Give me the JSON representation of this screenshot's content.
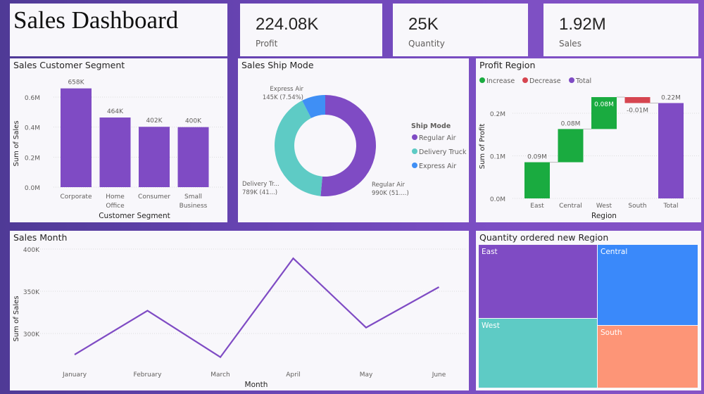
{
  "title": "Sales Dashboard",
  "kpis": [
    {
      "value": "224.08K",
      "label": "Profit"
    },
    {
      "value": "25K",
      "label": "Quantity"
    },
    {
      "value": "1.92M",
      "label": "Sales"
    }
  ],
  "colors": {
    "purple": "#7f4bc4",
    "teal": "#5ecbc5",
    "blue": "#3f8ff5",
    "green": "#1aab40",
    "red": "#d64550",
    "salmon": "#fd9577",
    "accent_blue": "#3a89fa"
  },
  "chart_data": [
    {
      "type": "bar",
      "title": "Sales Customer Segment",
      "xlabel": "Customer Segment",
      "ylabel": "Sum of Sales",
      "categories": [
        "Corporate",
        "Home Office",
        "Consumer",
        "Small Business"
      ],
      "values": [
        658000,
        464000,
        402000,
        400000
      ],
      "data_labels": [
        "658K",
        "464K",
        "402K",
        "400K"
      ],
      "yticks": [
        "0.0M",
        "0.2M",
        "0.4M",
        "0.6M"
      ],
      "ylim": [
        0,
        0.7
      ],
      "grid": true
    },
    {
      "type": "pie",
      "subtype": "donut",
      "title": "Sales Ship Mode",
      "legend_title": "Ship Mode",
      "legend_position": "right",
      "categories": [
        "Regular Air",
        "Delivery Truck",
        "Express Air"
      ],
      "values": [
        990000,
        789000,
        145000
      ],
      "data_labels": [
        [
          "Regular Air",
          "990K (51....)"
        ],
        [
          "Delivery Tr...",
          "789K (41...)"
        ],
        [
          "Express Air",
          "145K (7.54%)"
        ]
      ]
    },
    {
      "type": "bar",
      "subtype": "waterfall",
      "title": "Profit Region",
      "xlabel": "Region",
      "ylabel": "Sum of Profit",
      "legend": [
        "Increase",
        "Decrease",
        "Total"
      ],
      "legend_position": "top-left",
      "categories": [
        "East",
        "Central",
        "West",
        "South",
        "Total"
      ],
      "values": [
        0.085,
        0.078,
        0.075,
        -0.014,
        0.224
      ],
      "data_labels": [
        "0.09M",
        "0.08M",
        "0.08M",
        "-0.01M",
        "0.22M"
      ],
      "yticks": [
        "0.0M",
        "0.1M",
        "0.2M"
      ],
      "ylim": [
        0,
        0.25
      ],
      "grid": true
    },
    {
      "type": "line",
      "title": "Sales Month",
      "xlabel": "Month",
      "ylabel": "Sum of Sales",
      "categories": [
        "January",
        "February",
        "March",
        "April",
        "May",
        "June"
      ],
      "values": [
        275000,
        327000,
        272000,
        389000,
        307000,
        355000
      ],
      "yticks": [
        "300K",
        "350K",
        "400K"
      ],
      "ylim": [
        250000,
        400000
      ],
      "grid": true
    },
    {
      "type": "treemap",
      "title": "Quantity ordered new Region",
      "categories": [
        "East",
        "Central",
        "West",
        "South"
      ]
    }
  ]
}
